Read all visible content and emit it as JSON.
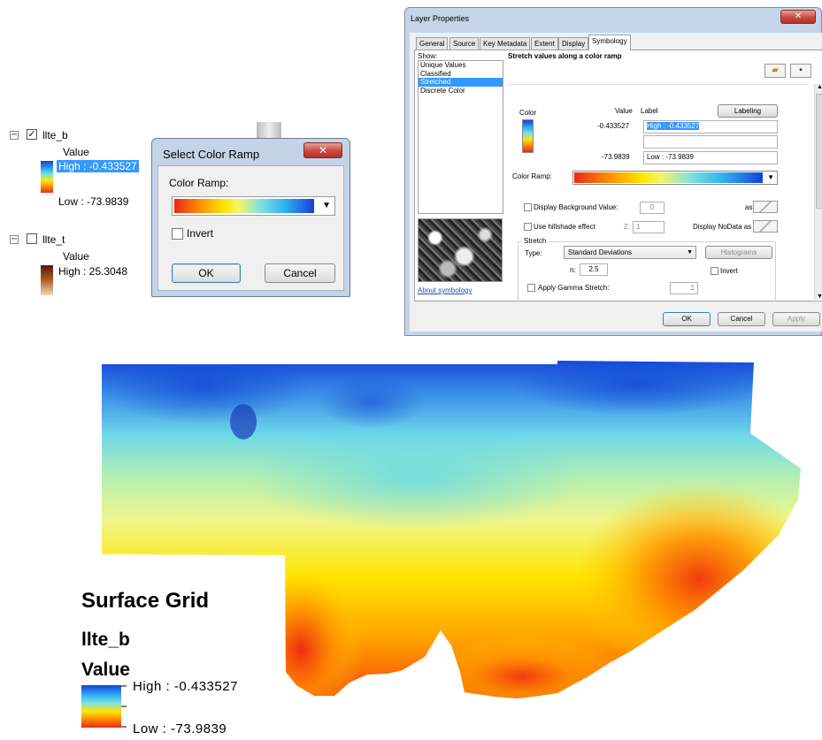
{
  "toc": {
    "layer1": {
      "name": "llte_b",
      "value_label": "Value",
      "high": "High : -0.433527",
      "low": "Low : -73.9839",
      "checked": true
    },
    "layer2": {
      "name": "llte_t",
      "value_label": "Value",
      "high": "High : 25.3048",
      "checked": false
    }
  },
  "select_color_ramp": {
    "title": "Select Color Ramp",
    "close_glyph": "✕",
    "ramp_label": "Color Ramp:",
    "invert_label": "Invert",
    "ok": "OK",
    "cancel": "Cancel"
  },
  "layer_properties": {
    "title": "Layer Properties",
    "close_glyph": "✕",
    "tabs": [
      "General",
      "Source",
      "Key Metadata",
      "Extent",
      "Display",
      "Symbology"
    ],
    "active_tab": "Symbology",
    "show_label": "Show:",
    "show_items": [
      "Unique Values",
      "Classified",
      "Stretched",
      "Discrete Color"
    ],
    "selected_show": "Stretched",
    "header": "Stretch values along a color ramp",
    "col_color": "Color",
    "col_value": "Value",
    "col_label": "Label",
    "labeling_button": "Labeling",
    "high_value": "-0.433527",
    "high_label": "High : -0.433527",
    "low_value": "-73.9839",
    "low_label": "Low : -73.9839",
    "color_ramp_label": "Color Ramp:",
    "display_bg_label": "Display Background Value:",
    "display_bg_value": "0",
    "as_label": "as",
    "hillshade_label": "Use hillshade effect",
    "z_label": "Z:",
    "z_value": "1",
    "nodata_label": "Display NoData as",
    "stretch_group": "Stretch",
    "type_label": "Type:",
    "type_value": "Standard Deviations",
    "histograms_button": "Histograms",
    "n_label": "n:",
    "n_value": "2.5",
    "invert_label": "Invert",
    "gamma_label": "Apply Gamma Stretch:",
    "gamma_value": "1",
    "about_link": "About symbology",
    "ok": "OK",
    "cancel": "Cancel",
    "apply": "Apply"
  },
  "map": {
    "title": "Surface Grid",
    "layer": "llte_b",
    "value_label": "Value",
    "high": "High : -0.433527",
    "low": "Low : -73.9839"
  },
  "colors": {
    "ramp": [
      "#e8291a",
      "#ff8c00",
      "#ffe600",
      "#f2f56a",
      "#7ee0e0",
      "#32b6ef",
      "#1440dc"
    ],
    "selection": "#3399ff",
    "dialog_frame": "#c4d3e6"
  }
}
